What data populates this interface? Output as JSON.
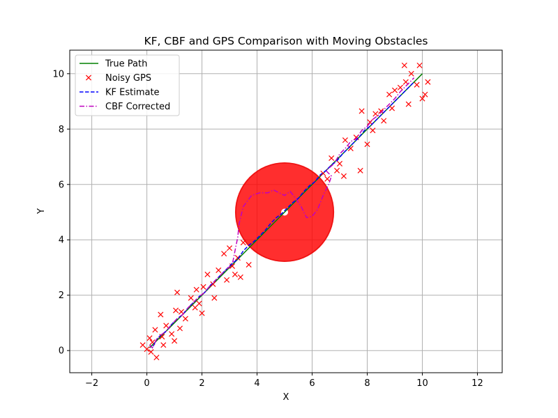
{
  "chart_data": {
    "type": "scatter",
    "title": "KF, CBF and GPS Comparison with Moving Obstacles",
    "xlabel": "X",
    "ylabel": "Y",
    "xlim": [
      -2.8,
      12.9
    ],
    "ylim": [
      -0.8,
      10.85
    ],
    "xticks": [
      -2,
      0,
      2,
      4,
      6,
      8,
      10,
      12
    ],
    "yticks": [
      0,
      2,
      4,
      6,
      8,
      10
    ],
    "grid": true,
    "legend_position": "top-left",
    "obstacle": {
      "center": [
        5.0,
        5.0
      ],
      "radius": 1.8,
      "color": "#ff0000"
    },
    "series": [
      {
        "name": "True Path",
        "kind": "line",
        "color": "#008000",
        "x": [
          0.1,
          10.0
        ],
        "y": [
          0.1,
          10.0
        ]
      },
      {
        "name": "Noisy GPS",
        "kind": "scatter",
        "color": "#ff0000",
        "x": [
          -0.15,
          0.0,
          0.1,
          0.15,
          0.2,
          0.3,
          0.35,
          0.5,
          0.55,
          0.6,
          0.7,
          0.9,
          1.0,
          1.05,
          1.1,
          1.2,
          1.25,
          1.4,
          1.6,
          1.75,
          1.8,
          1.9,
          2.0,
          2.05,
          2.2,
          2.4,
          2.45,
          2.6,
          2.8,
          2.9,
          3.0,
          3.1,
          3.2,
          3.3,
          3.4,
          3.5,
          3.7,
          6.4,
          6.55,
          6.7,
          6.9,
          7.0,
          7.15,
          7.2,
          7.4,
          7.6,
          7.75,
          7.8,
          8.0,
          8.1,
          8.2,
          8.3,
          8.5,
          8.6,
          8.8,
          8.9,
          9.0,
          9.2,
          9.35,
          9.4,
          9.5,
          9.6,
          9.8,
          9.9,
          10.0,
          10.1,
          10.2
        ],
        "y": [
          0.2,
          0.05,
          0.45,
          -0.05,
          0.3,
          0.75,
          -0.25,
          1.3,
          0.5,
          0.2,
          0.9,
          0.6,
          0.35,
          1.45,
          2.1,
          0.8,
          1.4,
          1.15,
          1.9,
          1.55,
          2.2,
          1.7,
          1.35,
          2.3,
          2.75,
          2.4,
          1.9,
          2.9,
          3.5,
          2.55,
          3.7,
          3.05,
          2.75,
          3.35,
          2.65,
          3.9,
          3.1,
          6.4,
          6.2,
          6.95,
          6.5,
          6.75,
          6.3,
          7.6,
          7.3,
          7.7,
          6.5,
          8.65,
          7.45,
          8.25,
          7.95,
          8.55,
          8.65,
          8.3,
          9.25,
          8.75,
          9.4,
          9.5,
          10.3,
          9.7,
          8.9,
          10.0,
          9.6,
          10.3,
          9.1,
          9.25,
          9.7
        ]
      },
      {
        "name": "KF Estimate",
        "kind": "dashed-line",
        "color": "#0000ff",
        "x": [
          0.1,
          0.2,
          0.35,
          0.5,
          0.7,
          0.9,
          1.1,
          1.3,
          1.5,
          1.7,
          1.9,
          2.1,
          2.3,
          2.5,
          2.7,
          2.9,
          3.1,
          3.3,
          3.5,
          3.7,
          3.9,
          4.1,
          4.3,
          4.5,
          4.7,
          4.9,
          5.1,
          5.3,
          5.5,
          5.7,
          5.9,
          6.1,
          6.3,
          6.5,
          6.7,
          6.9,
          7.1,
          7.3,
          7.5,
          7.7,
          7.9,
          8.1,
          8.3,
          8.5,
          8.7,
          8.9,
          9.1,
          9.3,
          9.5,
          9.7
        ],
        "y": [
          0.2,
          0.1,
          0.4,
          0.55,
          0.7,
          0.95,
          1.15,
          1.3,
          1.55,
          1.75,
          1.95,
          2.1,
          2.35,
          2.55,
          2.75,
          2.95,
          3.15,
          3.3,
          3.6,
          3.8,
          3.95,
          4.15,
          4.35,
          4.6,
          4.8,
          4.95,
          5.15,
          5.35,
          5.5,
          5.75,
          5.95,
          6.1,
          6.35,
          6.5,
          6.7,
          6.85,
          7.1,
          7.3,
          7.5,
          7.7,
          7.95,
          8.1,
          8.3,
          8.5,
          8.7,
          8.9,
          9.1,
          9.3,
          9.5,
          9.7
        ]
      },
      {
        "name": "CBF Corrected",
        "kind": "dashdot-line",
        "color": "#bf00bf",
        "x": [
          0.1,
          0.2,
          0.35,
          0.5,
          0.7,
          0.9,
          1.1,
          1.3,
          1.5,
          1.7,
          1.9,
          2.1,
          2.3,
          2.5,
          2.7,
          2.9,
          3.1,
          3.2,
          3.3,
          3.35,
          3.5,
          3.8,
          4.1,
          4.4,
          4.6,
          4.8,
          5.0,
          5.2,
          5.4,
          5.6,
          5.8,
          6.0,
          6.2,
          6.4,
          6.6,
          6.7,
          6.5,
          6.8,
          7.0,
          7.2,
          7.4,
          7.6,
          7.8,
          8.0,
          8.2,
          8.4,
          8.6,
          8.8,
          9.0,
          9.2,
          9.4,
          9.6,
          9.7
        ],
        "y": [
          0.2,
          0.1,
          0.4,
          0.55,
          0.7,
          0.95,
          1.15,
          1.3,
          1.55,
          1.75,
          1.95,
          2.1,
          2.35,
          2.55,
          2.75,
          2.95,
          3.1,
          3.6,
          4.1,
          4.6,
          5.2,
          5.6,
          5.7,
          5.7,
          5.8,
          5.7,
          5.6,
          5.75,
          5.5,
          5.2,
          4.8,
          4.85,
          5.1,
          5.6,
          6.0,
          6.3,
          6.5,
          6.75,
          7.1,
          7.3,
          7.55,
          7.65,
          7.95,
          8.1,
          8.35,
          8.5,
          8.7,
          8.9,
          9.1,
          9.35,
          9.55,
          9.75,
          9.85
        ]
      }
    ]
  }
}
